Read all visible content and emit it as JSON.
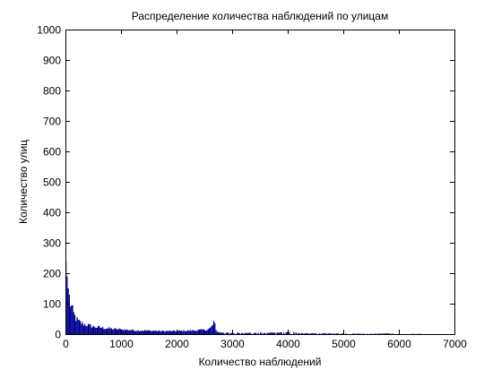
{
  "chart_data": {
    "type": "bar",
    "title": "Распределение количества наблюдений по улицам",
    "xlabel": "Количество наблюдений",
    "ylabel": "Количество улиц",
    "xlim": [
      0,
      7000
    ],
    "ylim": [
      0,
      1000
    ],
    "xticks": [
      "0",
      "1000",
      "2000",
      "3000",
      "4000",
      "5000",
      "6000",
      "7000"
    ],
    "yticks": [
      "0",
      "100",
      "200",
      "300",
      "400",
      "500",
      "600",
      "700",
      "800",
      "900",
      "1000"
    ],
    "grid": false,
    "bar_color": "#00008b",
    "bin_width": 20,
    "series": [
      {
        "points": [
          [
            0,
            240
          ],
          [
            20,
            190
          ],
          [
            40,
            150
          ],
          [
            60,
            120
          ],
          [
            80,
            100
          ],
          [
            100,
            88
          ],
          [
            120,
            76
          ],
          [
            140,
            66
          ],
          [
            160,
            58
          ],
          [
            180,
            52
          ],
          [
            200,
            47
          ],
          [
            220,
            43
          ],
          [
            240,
            40
          ],
          [
            260,
            38
          ],
          [
            280,
            36
          ],
          [
            300,
            34
          ],
          [
            320,
            33
          ],
          [
            340,
            32
          ],
          [
            360,
            31
          ],
          [
            380,
            30
          ],
          [
            400,
            29
          ],
          [
            420,
            28
          ],
          [
            440,
            27
          ],
          [
            460,
            26
          ],
          [
            480,
            25
          ],
          [
            500,
            24
          ],
          [
            550,
            23
          ],
          [
            600,
            22
          ],
          [
            650,
            21
          ],
          [
            700,
            20
          ],
          [
            750,
            19
          ],
          [
            800,
            18
          ],
          [
            850,
            17
          ],
          [
            900,
            16
          ],
          [
            950,
            16
          ],
          [
            1000,
            15
          ],
          [
            1100,
            14
          ],
          [
            1200,
            13
          ],
          [
            1300,
            12
          ],
          [
            1400,
            12
          ],
          [
            1500,
            11
          ],
          [
            1600,
            11
          ],
          [
            1700,
            10
          ],
          [
            1800,
            10
          ],
          [
            1900,
            10
          ],
          [
            2000,
            10
          ],
          [
            2100,
            11
          ],
          [
            2200,
            11
          ],
          [
            2300,
            12
          ],
          [
            2400,
            13
          ],
          [
            2500,
            14
          ],
          [
            2560,
            16
          ],
          [
            2600,
            20
          ],
          [
            2630,
            26
          ],
          [
            2650,
            34
          ],
          [
            2660,
            40
          ],
          [
            2670,
            45
          ],
          [
            2680,
            30
          ],
          [
            2700,
            12
          ],
          [
            2750,
            6
          ],
          [
            2800,
            5
          ],
          [
            3000,
            4
          ],
          [
            3200,
            4
          ],
          [
            3500,
            4
          ],
          [
            3800,
            5
          ],
          [
            4000,
            6
          ],
          [
            4100,
            7
          ],
          [
            4150,
            5
          ],
          [
            4200,
            3
          ],
          [
            4500,
            2
          ],
          [
            5000,
            2
          ],
          [
            5500,
            1
          ],
          [
            5800,
            2
          ],
          [
            6000,
            0
          ],
          [
            6400,
            1
          ],
          [
            6500,
            0
          ],
          [
            7000,
            0
          ]
        ]
      }
    ]
  }
}
